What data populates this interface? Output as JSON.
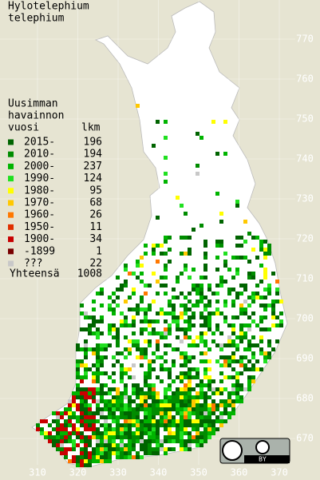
{
  "title": [
    "Hylotelephium",
    "telephium"
  ],
  "legend": {
    "heading": [
      "Uusimman",
      "havainnon"
    ],
    "year_header": "vuosi",
    "count_header": "lkm",
    "entries": [
      {
        "label": "2015-",
        "count": 196,
        "color": "#006400"
      },
      {
        "label": "2010-",
        "count": 194,
        "color": "#008c00"
      },
      {
        "label": "2000-",
        "count": 237,
        "color": "#00b400"
      },
      {
        "label": "1990-",
        "count": 124,
        "color": "#20e020"
      },
      {
        "label": "1980-",
        "count": 95,
        "color": "#ffff00"
      },
      {
        "label": "1970-",
        "count": 68,
        "color": "#ffc800"
      },
      {
        "label": "1960-",
        "count": 26,
        "color": "#ff7800"
      },
      {
        "label": "1950-",
        "count": 11,
        "color": "#e03000"
      },
      {
        "label": "1900-",
        "count": 34,
        "color": "#c80000"
      },
      {
        "label": "-1899",
        "count": 1,
        "color": "#780000"
      },
      {
        "label": "???",
        "count": 22,
        "color": "#c8c8c8"
      }
    ],
    "total_label": "Yhteensä",
    "total": 1008
  },
  "x_axis": [
    310,
    320,
    330,
    340,
    350,
    360,
    370
  ],
  "y_axis": [
    670,
    680,
    690,
    700,
    710,
    720,
    730,
    740,
    750,
    760,
    770
  ],
  "license": "BY"
}
